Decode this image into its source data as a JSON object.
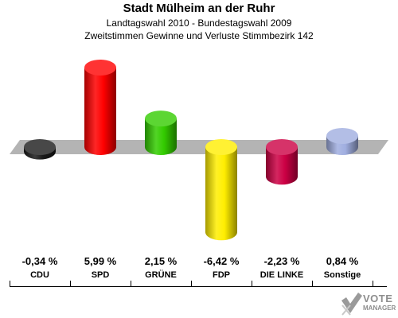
{
  "chart_data": {
    "type": "bar",
    "title": "Stadt Mülheim an der Ruhr",
    "subtitle1": "Landtagswahl 2010 - Bundestagswahl 2009",
    "subtitle2": "Zweitstimmen Gewinne und Verluste Stimmbezirk 142",
    "categories": [
      "CDU",
      "SPD",
      "GRÜNE",
      "FDP",
      "DIE LINKE",
      "Sonstige"
    ],
    "values": [
      -0.34,
      5.99,
      2.15,
      -6.42,
      -2.23,
      0.84
    ],
    "value_labels": [
      "-0,34 %",
      "5,99 %",
      "2,15 %",
      "-6,42 %",
      "-2,23 %",
      "0,84 %"
    ],
    "colors": [
      "#1a1a1a",
      "#ff0000",
      "#33cc00",
      "#ffee00",
      "#cc0044",
      "#a0aee0"
    ],
    "grid": false,
    "legend": "none"
  },
  "logo": {
    "line1": "VOTE",
    "line2": "MANAGER"
  }
}
